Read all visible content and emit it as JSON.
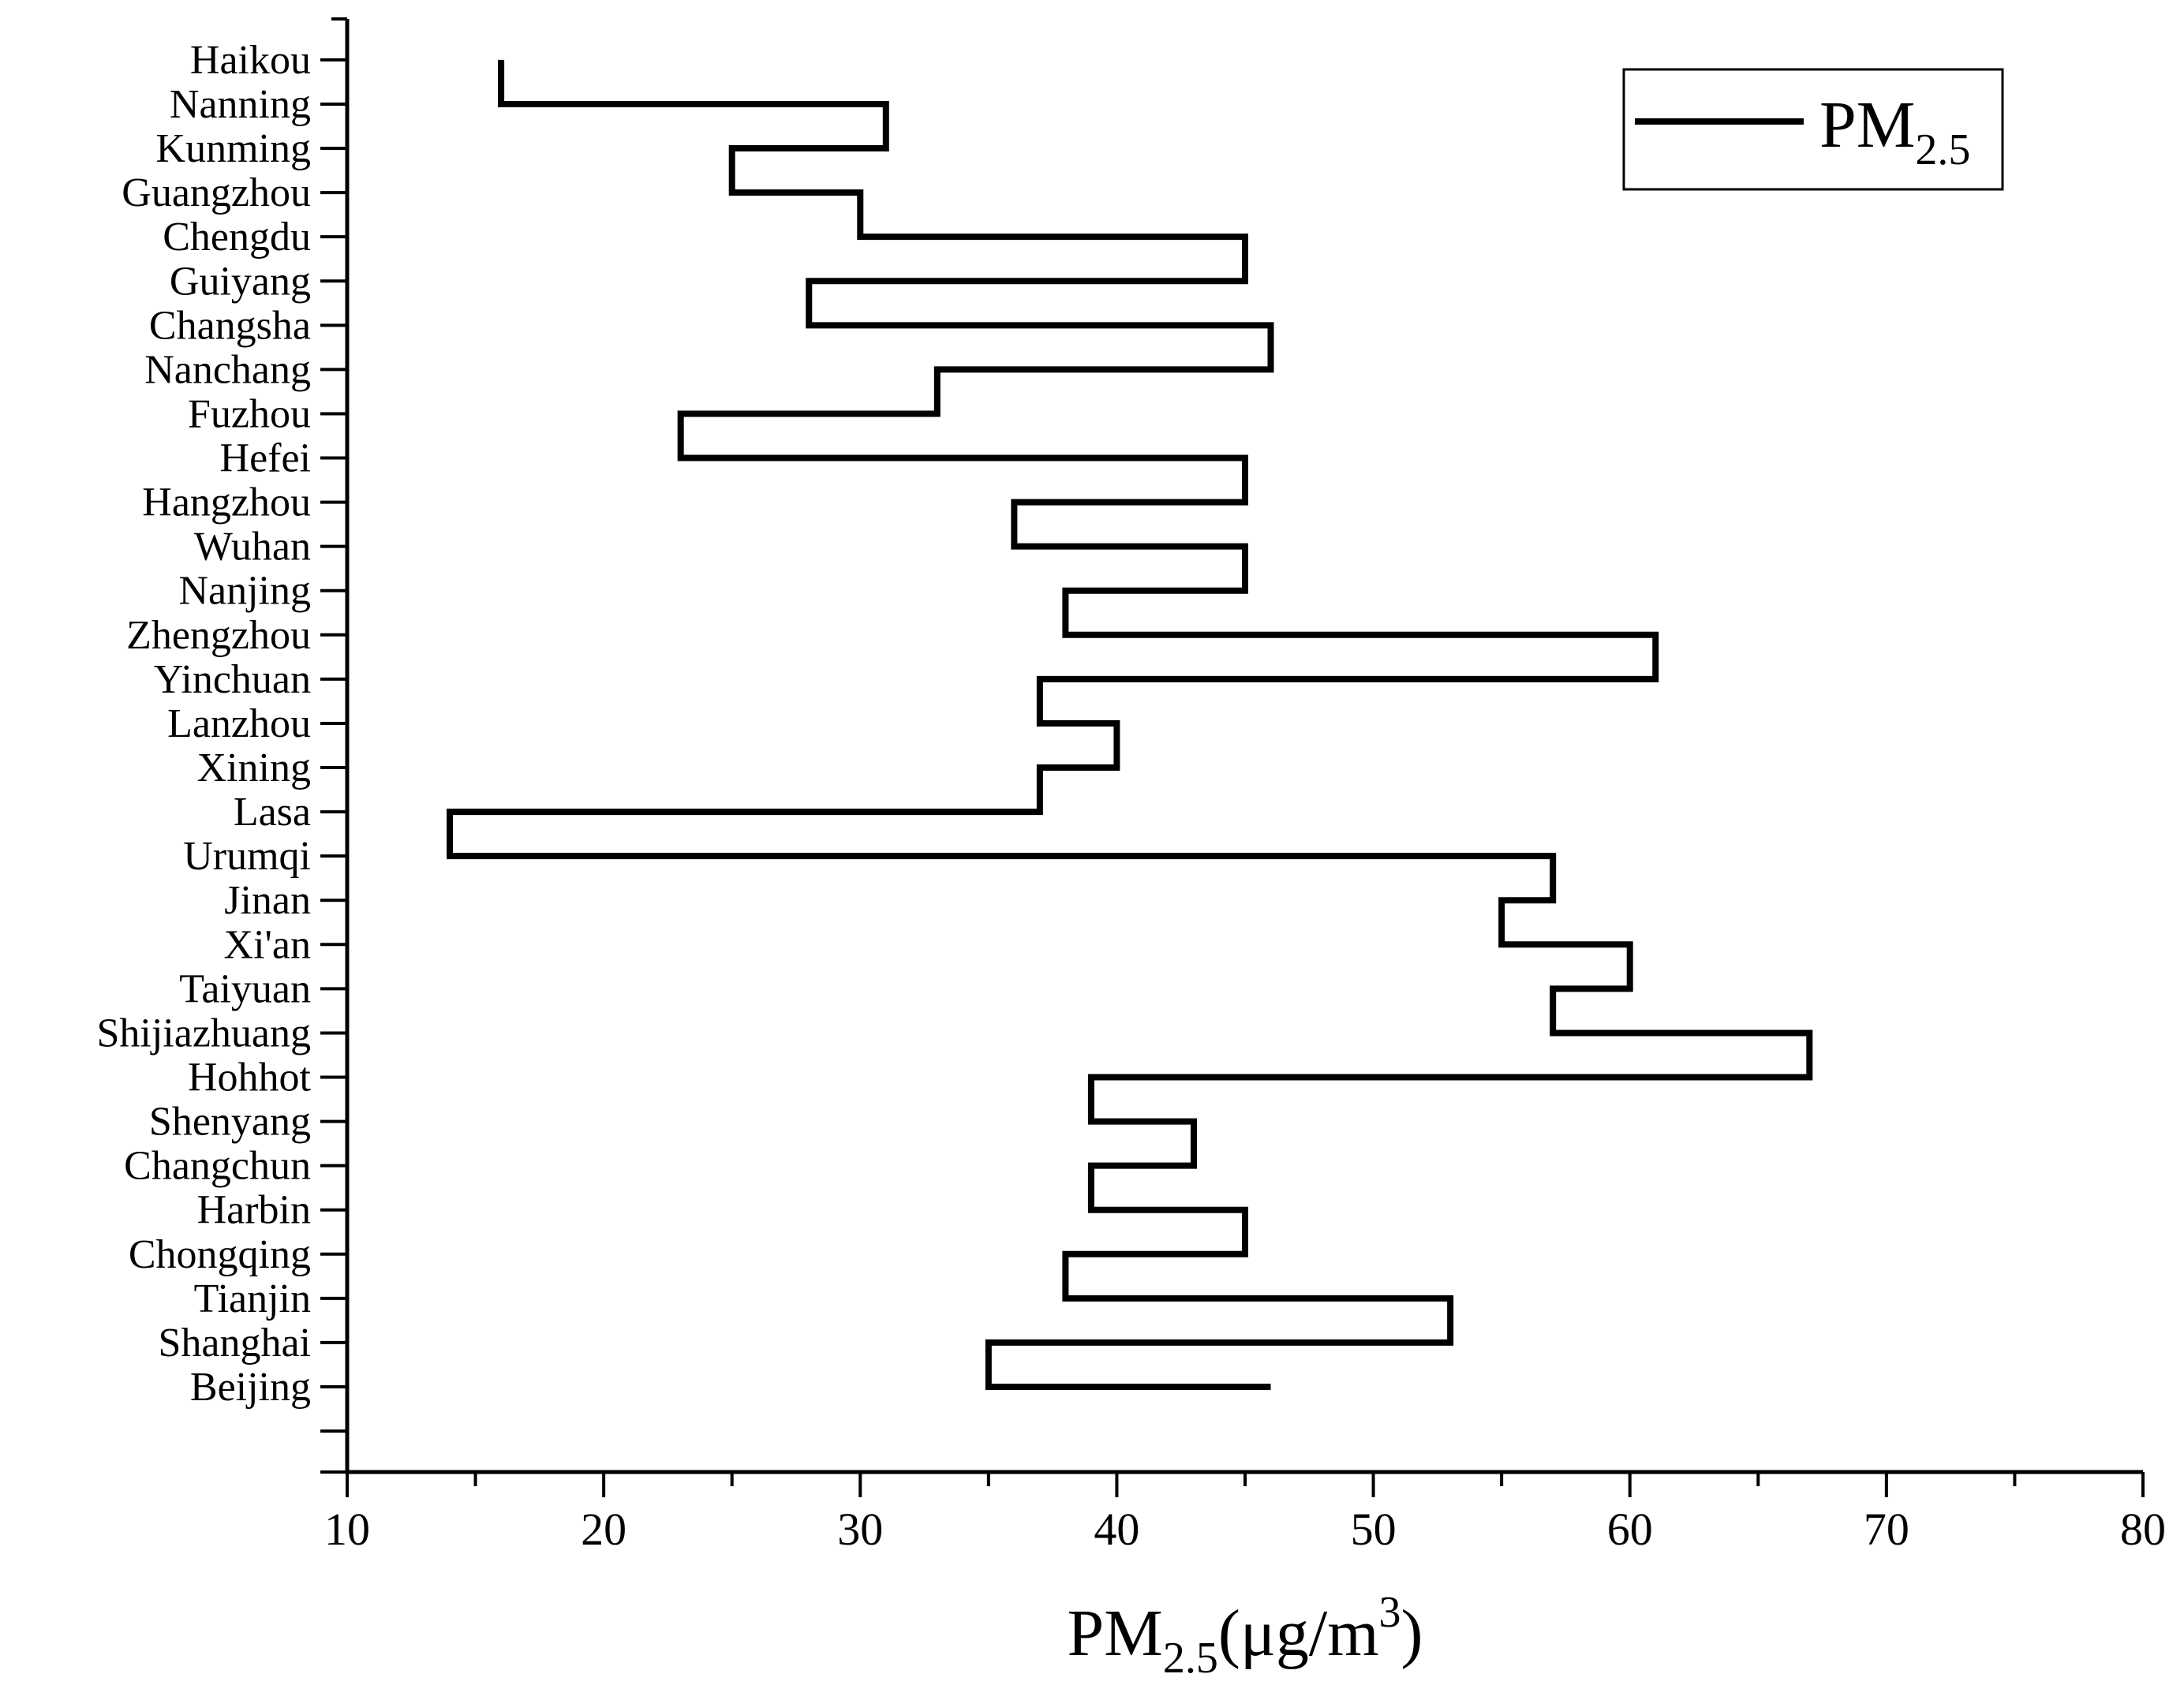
{
  "chart_data": {
    "type": "line",
    "orientation": "vertical-step",
    "categories": [
      "Beijing",
      "Shanghai",
      "Tianjin",
      "Chongqing",
      "Harbin",
      "Changchun",
      "Shenyang",
      "Hohhot",
      "Shijiazhuang",
      "Taiyuan",
      "Xi'an",
      "Jinan",
      "Urumqi",
      "Lasa",
      "Xining",
      "Lanzhou",
      "Yinchuan",
      "Zhengzhou",
      "Nanjing",
      "Wuhan",
      "Hangzhou",
      "Hefei",
      "Fuzhou",
      "Nanchang",
      "Changsha",
      "Guiyang",
      "Chengdu",
      "Guangzhou",
      "Kunming",
      "Nanning",
      "Haikou"
    ],
    "series": [
      {
        "name": "PM2.5",
        "values": [
          46,
          35,
          53,
          38,
          45,
          39,
          43,
          39,
          67,
          57,
          60,
          55,
          57,
          14,
          37,
          40,
          37,
          61,
          38,
          45,
          36,
          45,
          23,
          33,
          46,
          28,
          45,
          30,
          25,
          31,
          16
        ]
      }
    ],
    "xlim": [
      10,
      80
    ],
    "xticks": [
      10,
      20,
      30,
      40,
      50,
      60,
      70,
      80
    ],
    "xlabel": {
      "main": "PM",
      "sub": "2.5",
      "unit": "(μg/m",
      "sup": "3",
      "close": ")"
    },
    "legend": {
      "main": "PM",
      "sub": "2.5",
      "position": "top-right"
    },
    "color": "#000000",
    "grid": false
  }
}
